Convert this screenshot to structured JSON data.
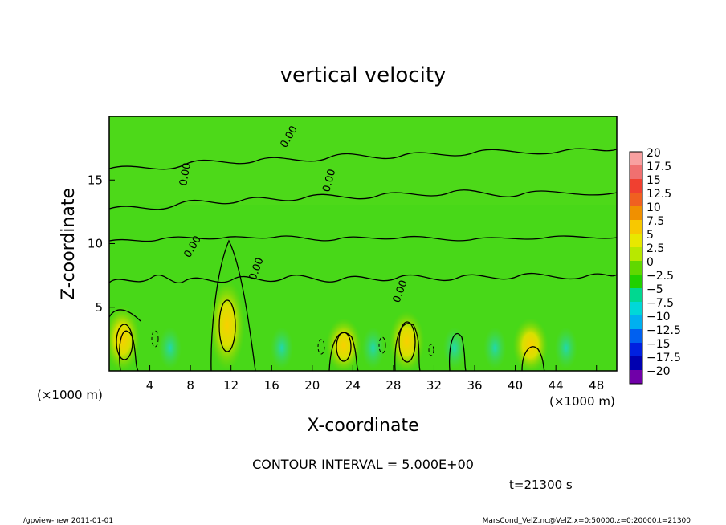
{
  "chart_data": {
    "type": "heatmap",
    "title": "vertical velocity",
    "xlabel": "X-coordinate",
    "ylabel": "Z-coordinate",
    "x_unit_left": "(×1000 m)",
    "x_unit_right": "(×1000 m)",
    "xlim": [
      0,
      50
    ],
    "ylim": [
      0,
      20
    ],
    "x_ticks": [
      4,
      8,
      12,
      16,
      20,
      24,
      28,
      32,
      36,
      40,
      44,
      48
    ],
    "y_ticks": [
      5,
      10,
      15
    ],
    "colorbar": {
      "labels": [
        "20",
        "17.5",
        "15",
        "12.5",
        "10",
        "7.5",
        "5",
        "2.5",
        "0",
        "−2.5",
        "−5",
        "−7.5",
        "−10",
        "−12.5",
        "−15",
        "−17.5",
        "−20"
      ],
      "colors": [
        "#f8a0a0",
        "#f07070",
        "#f04030",
        "#f06020",
        "#f09000",
        "#f8c800",
        "#e8e800",
        "#b8e800",
        "#60d800",
        "#20d000",
        "#00d890",
        "#00d8d8",
        "#00b0f0",
        "#0060f0",
        "#0020e0",
        "#0000b0",
        "#7000a8"
      ]
    },
    "contour_labels": [
      "0.00",
      "0.00",
      "0.00",
      "0.00",
      "0.00",
      "0.00"
    ],
    "warm_cores": [
      {
        "x": 1.3,
        "z": 2.5,
        "value": 7.5
      },
      {
        "x": 11.6,
        "z": 3.6,
        "value": 7.5
      },
      {
        "x": 23.1,
        "z": 2.0,
        "value": 5
      },
      {
        "x": 29.3,
        "z": 2.3,
        "value": 7.5
      },
      {
        "x": 41.5,
        "z": 2.0,
        "value": 2.5
      }
    ],
    "contour_interval": "CONTOUR INTERVAL = 5.000E+00",
    "time": "t=21300 s"
  },
  "footer": {
    "left": "./gpview-new  2011-01-01",
    "right": "MarsCond_VelZ.nc@VelZ,x=0:50000,z=0:20000,t=21300"
  }
}
